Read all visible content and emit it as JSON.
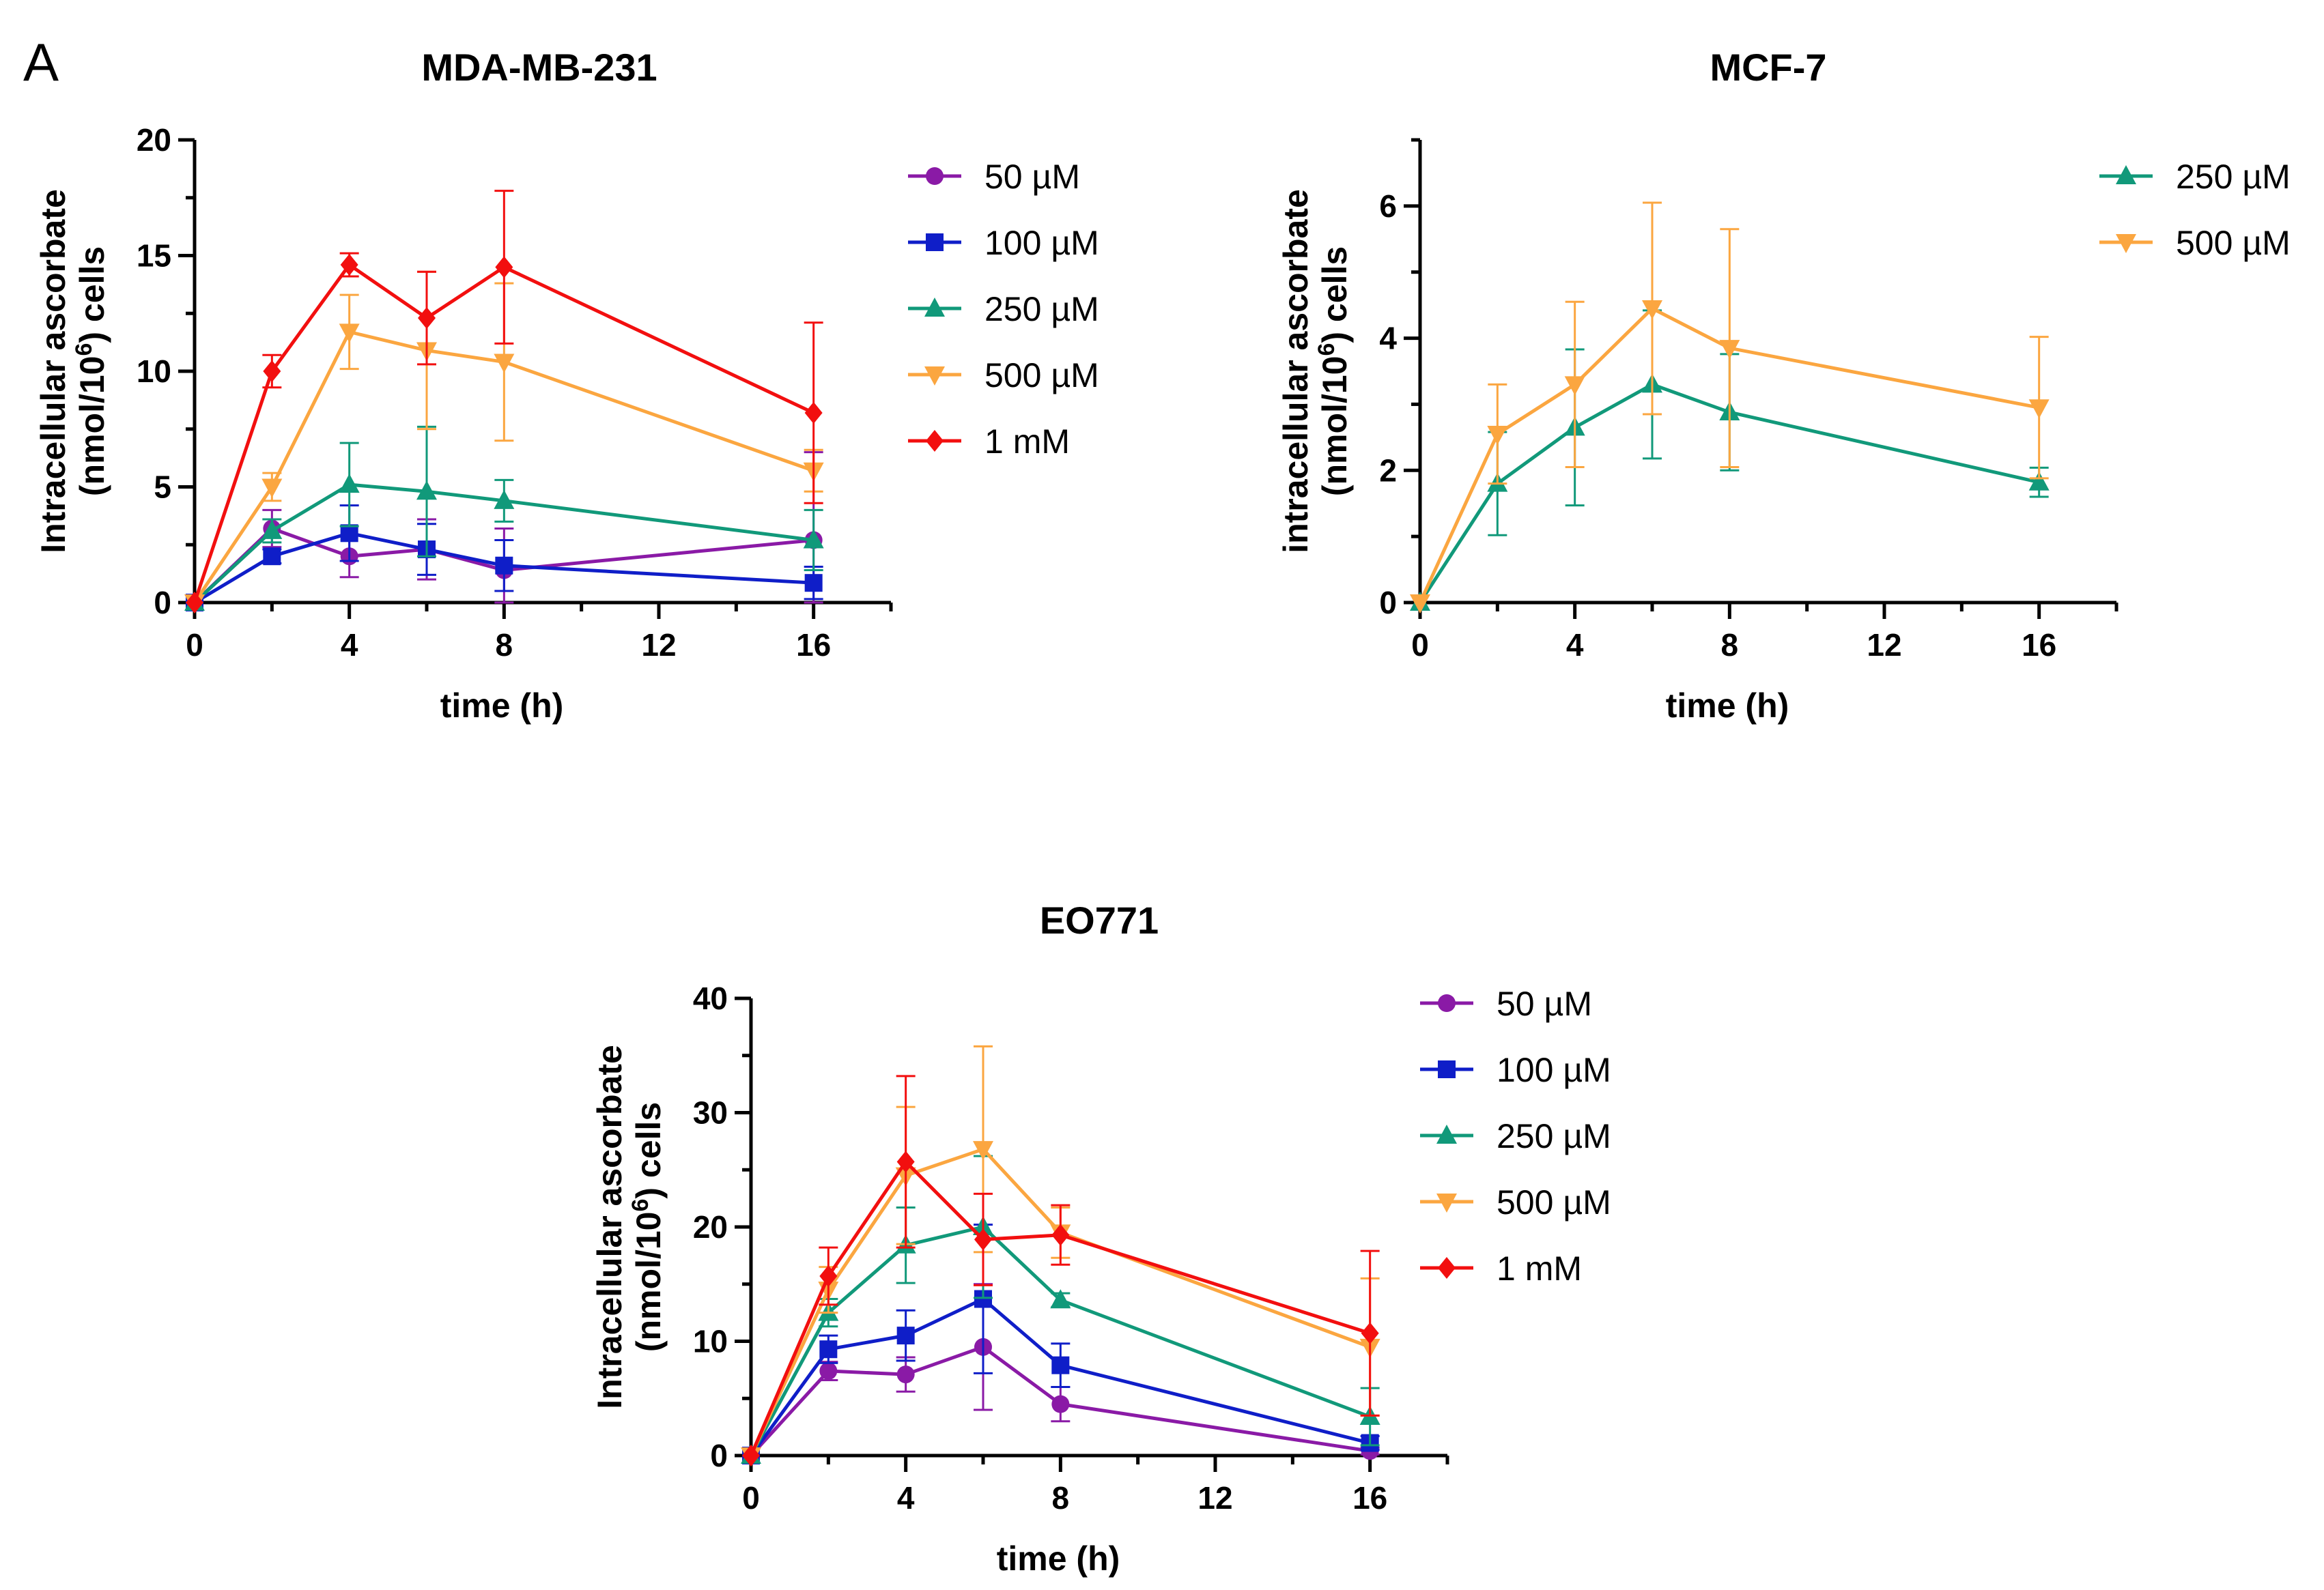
{
  "panel_label": "A",
  "chart_data": [
    {
      "type": "line",
      "title": "MDA-MB-231",
      "xlabel": "time (h)",
      "ylabel_line1": "Intracellular ascorbate",
      "ylabel_line2": "(nmol/10",
      "ylabel_sup": "6",
      "ylabel_line2_end": ") cells",
      "xlim": [
        0,
        18
      ],
      "ylim": [
        0,
        20
      ],
      "xticks": [
        0,
        4,
        8,
        12,
        16
      ],
      "yticks": [
        0,
        5,
        10,
        15,
        20
      ],
      "x": [
        0,
        2,
        4,
        6,
        8,
        16
      ],
      "series": [
        {
          "name": "50 µM",
          "color": "#8a1aa6",
          "marker": "circle",
          "values": [
            0,
            3.2,
            2.0,
            2.3,
            1.4,
            2.7
          ],
          "err": [
            0,
            0.8,
            0.9,
            1.3,
            1.8,
            3.8
          ]
        },
        {
          "name": "100 µM",
          "color": "#0f1ec8",
          "marker": "square",
          "values": [
            0,
            2.0,
            3.0,
            2.3,
            1.6,
            0.85
          ],
          "err": [
            0,
            0.3,
            1.2,
            1.1,
            1.1,
            0.7
          ]
        },
        {
          "name": "250 µM",
          "color": "#11997a",
          "marker": "triangle-up",
          "values": [
            0,
            3.1,
            5.1,
            4.8,
            4.4,
            2.7
          ],
          "err": [
            0,
            0.5,
            1.8,
            2.8,
            0.9,
            1.3
          ]
        },
        {
          "name": "500 µM",
          "color": "#fba640",
          "marker": "triangle-down",
          "values": [
            0,
            5.0,
            11.7,
            10.9,
            10.4,
            5.7
          ],
          "err": [
            0,
            0.6,
            1.6,
            3.4,
            3.4,
            0.9
          ]
        },
        {
          "name": "1 mM",
          "color": "#f20f0f",
          "marker": "diamond",
          "values": [
            0,
            10.0,
            14.6,
            12.3,
            14.5,
            8.2
          ],
          "err": [
            0,
            0.7,
            0.5,
            2.0,
            3.3,
            3.9
          ]
        }
      ]
    },
    {
      "type": "line",
      "title": "MCF-7",
      "xlabel": "time (h)",
      "ylabel_line1": "intracellular ascorbate",
      "ylabel_line2": "(nmol/10",
      "ylabel_sup": "6",
      "ylabel_line2_end": ") cells",
      "xlim": [
        0,
        18
      ],
      "ylim": [
        0,
        7
      ],
      "xticks": [
        0,
        4,
        8,
        12,
        16
      ],
      "yticks": [
        0,
        2,
        4,
        6
      ],
      "x": [
        0,
        2,
        4,
        6,
        8,
        16
      ],
      "series": [
        {
          "name": "250 µM",
          "color": "#11997a",
          "marker": "triangle-up",
          "values": [
            0,
            1.8,
            2.65,
            3.3,
            2.88,
            1.82
          ],
          "err": [
            0,
            0.78,
            1.18,
            1.12,
            0.88,
            0.22
          ]
        },
        {
          "name": "500 µM",
          "color": "#fba640",
          "marker": "triangle-down",
          "values": [
            0,
            2.55,
            3.3,
            4.45,
            3.85,
            2.95
          ],
          "err": [
            0,
            0.75,
            1.25,
            1.6,
            1.8,
            1.07
          ]
        }
      ]
    },
    {
      "type": "line",
      "title": "EO771",
      "xlabel": "time (h)",
      "ylabel_line1": "Intracellular ascorbate",
      "ylabel_line2": "(nmol/10",
      "ylabel_sup": "6",
      "ylabel_line2_end": ") cells",
      "xlim": [
        0,
        18
      ],
      "ylim": [
        0,
        40
      ],
      "xticks": [
        0,
        4,
        8,
        12,
        16
      ],
      "yticks": [
        0,
        10,
        20,
        30,
        40
      ],
      "x": [
        0,
        2,
        4,
        6,
        8,
        16
      ],
      "series": [
        {
          "name": "50 µM",
          "color": "#8a1aa6",
          "marker": "circle",
          "values": [
            0,
            7.4,
            7.1,
            9.5,
            4.5,
            0.4
          ],
          "err": [
            0,
            0.8,
            1.5,
            5.5,
            1.5,
            0.3
          ]
        },
        {
          "name": "100 µM",
          "color": "#0f1ec8",
          "marker": "square",
          "values": [
            0,
            9.3,
            10.5,
            13.7,
            7.9,
            1.1
          ],
          "err": [
            0,
            1.2,
            2.2,
            6.5,
            1.9,
            0.6
          ]
        },
        {
          "name": "250 µM",
          "color": "#11997a",
          "marker": "triangle-up",
          "values": [
            0,
            12.5,
            18.4,
            20.0,
            13.6,
            3.4
          ],
          "err": [
            0,
            1.2,
            3.3,
            6.2,
            0.6,
            2.5
          ]
        },
        {
          "name": "500 µM",
          "color": "#fba640",
          "marker": "triangle-down",
          "values": [
            0,
            14.5,
            24.5,
            26.8,
            19.5,
            9.5
          ],
          "err": [
            0,
            2.0,
            6.0,
            9.0,
            2.2,
            6.0
          ]
        },
        {
          "name": "1 mM",
          "color": "#f20f0f",
          "marker": "diamond",
          "values": [
            0,
            15.7,
            25.7,
            18.9,
            19.3,
            10.7
          ],
          "err": [
            0,
            2.5,
            7.5,
            4.0,
            2.6,
            7.2
          ]
        }
      ]
    }
  ]
}
